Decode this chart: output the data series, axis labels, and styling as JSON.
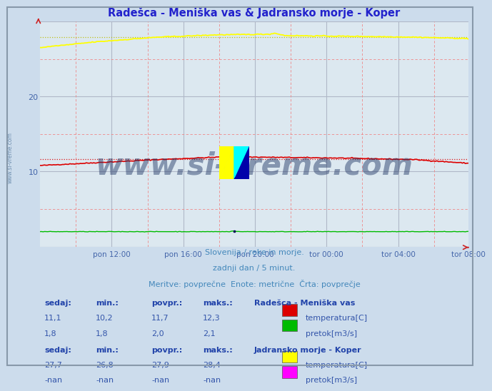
{
  "title": "Radešca - Meniška vas & Jadransko morje - Koper",
  "title_color": "#2222cc",
  "bg_color": "#ccdcec",
  "plot_bg_color": "#dce8f0",
  "grid_color_major": "#b0b8c8",
  "border_color": "#8899aa",
  "ylim": [
    0,
    30
  ],
  "yticks": [
    10,
    20
  ],
  "xlabel_color": "#4466aa",
  "ylabel_color": "#4466aa",
  "xtick_labels": [
    "pon 12:00",
    "pon 16:00",
    "pon 20:00",
    "tor 00:00",
    "tor 04:00",
    "tor 08:00"
  ],
  "subtitle1": "Slovenija / reke in morje.",
  "subtitle2": "zadnji dan / 5 minut.",
  "subtitle3": "Meritve: povprečne  Enote: metrične  Črta: povprečje",
  "subtitle_color": "#4488bb",
  "watermark": "www.si-vreme.com",
  "watermark_color": "#1a3060",
  "station1_name": "Radešca - Meniška vas",
  "station1_temp_color": "#dd0000",
  "station1_flow_color": "#00bb00",
  "station1_temp_avg": 11.7,
  "station2_name": "Jadransko morje - Koper",
  "station2_temp_color": "#ffff00",
  "station2_flow_color": "#ff00ff",
  "station2_temp_avg": 27.9,
  "n_points": 288,
  "side_text": "www.si-vreme.com",
  "side_text_color": "#6688aa"
}
